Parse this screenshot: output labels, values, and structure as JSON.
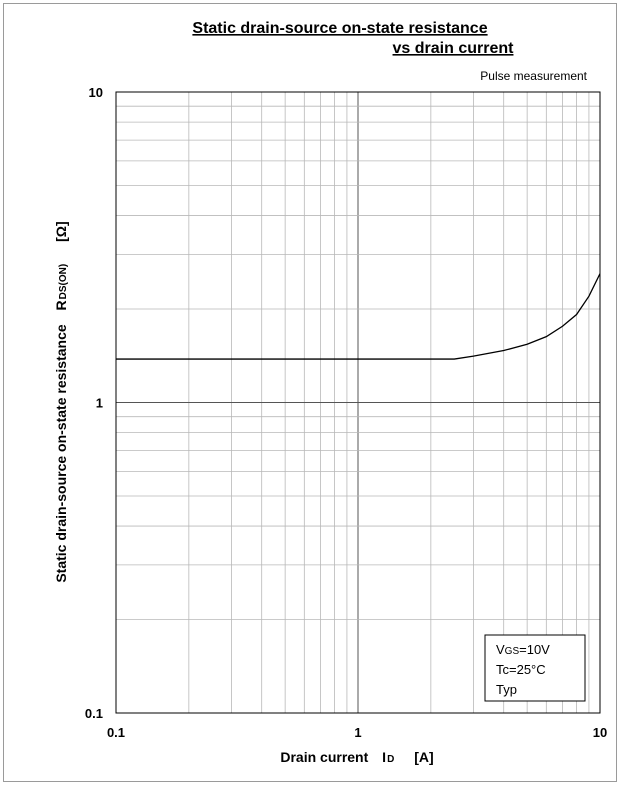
{
  "chart_data": {
    "type": "line",
    "title_line1": "Static drain-source on-state resistance",
    "title_line2": "vs drain current",
    "annotation": "Pulse measurement",
    "xlabel": "Drain current",
    "xlabel_symbol": "I",
    "xlabel_subscript": "D",
    "xlabel_unit": "[A]",
    "ylabel": "Static drain-source on-state resistance",
    "ylabel_symbol": "R",
    "ylabel_subscript": "DS(ON)",
    "ylabel_unit": "[Ω]",
    "x_scale": "log",
    "y_scale": "log",
    "xlim": [
      0.1,
      10
    ],
    "ylim": [
      0.1,
      10
    ],
    "x_ticks": [
      {
        "value": 0.1,
        "label": "0.1"
      },
      {
        "value": 1,
        "label": "1"
      },
      {
        "value": 10,
        "label": "10"
      }
    ],
    "y_ticks": [
      {
        "value": 0.1,
        "label": "0.1"
      },
      {
        "value": 1,
        "label": "1"
      },
      {
        "value": 10,
        "label": "10"
      }
    ],
    "grid": true,
    "legend": {
      "position": "bottom-right",
      "lines": [
        {
          "main": "V",
          "sub": "GS",
          "rest": "=10V"
        },
        {
          "main": "Tc=25°C",
          "sub": "",
          "rest": ""
        },
        {
          "main": "Typ",
          "sub": "",
          "rest": ""
        }
      ]
    },
    "series": [
      {
        "x": [
          0.1,
          0.5,
          1,
          2,
          2.5,
          3,
          4,
          5,
          6,
          7,
          8,
          9,
          10
        ],
        "y": [
          1.38,
          1.38,
          1.38,
          1.38,
          1.38,
          1.41,
          1.47,
          1.54,
          1.63,
          1.76,
          1.92,
          2.2,
          2.6
        ]
      }
    ]
  }
}
